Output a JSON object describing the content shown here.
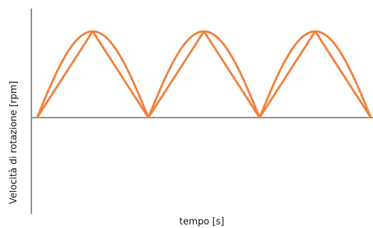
{
  "chart_data": {
    "type": "line",
    "title": "",
    "xlabel": "tempo [s]",
    "ylabel": "Velocità di rotazione [rpm]",
    "x_ticks": [],
    "y_ticks": [],
    "grid": false,
    "legend": "none",
    "ylim": [
      -1,
      1
    ],
    "xlim": [
      0,
      3
    ],
    "series": [
      {
        "style": "sine",
        "color": "#f0813c",
        "x": [
          0,
          0.5,
          1,
          1.5,
          2,
          2.5,
          3
        ],
        "values": [
          0,
          1,
          0,
          1,
          0,
          1,
          0
        ]
      },
      {
        "style": "triangle",
        "color": "#f0813c",
        "x": [
          0,
          0.5,
          1,
          1.5,
          2,
          2.5,
          3
        ],
        "values": [
          0,
          1,
          0,
          1,
          0,
          1,
          0
        ]
      }
    ]
  }
}
